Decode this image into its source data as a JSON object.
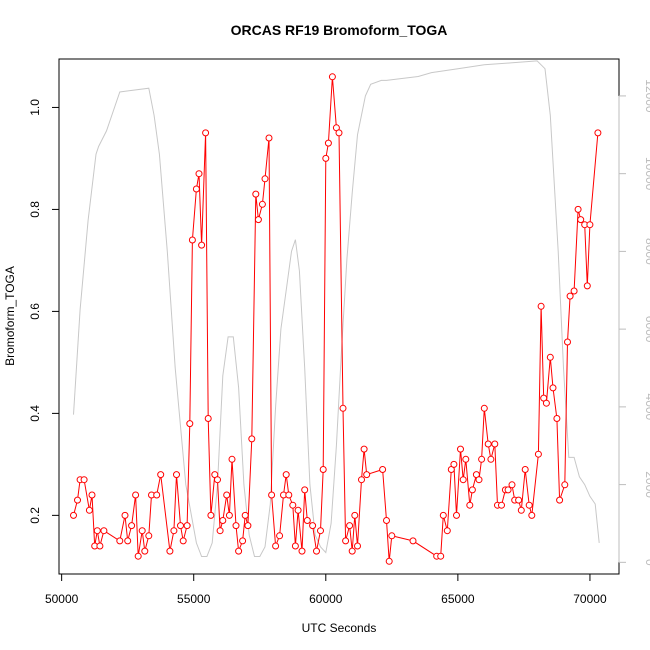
{
  "chart_data": {
    "type": "line",
    "title": "ORCAS RF19 Bromoform_TOGA",
    "xlabel": "UTC Seconds",
    "ylabel": "Bromoform_TOGA",
    "xlim": [
      49900,
      71100
    ],
    "ylim": [
      0.085,
      1.095
    ],
    "y2lim": [
      -300,
      12950
    ],
    "x_ticks": [
      50000,
      55000,
      60000,
      65000,
      70000
    ],
    "y_ticks": [
      0.2,
      0.4,
      0.6,
      0.8,
      1.0
    ],
    "y2_ticks": [
      0,
      2000,
      4000,
      6000,
      8000,
      10000,
      12000
    ],
    "grid": false,
    "series": [
      {
        "color": "#ff0000",
        "points": [
          [
            50450,
            0.2
          ],
          [
            50600,
            0.23
          ],
          [
            50700,
            0.27
          ],
          [
            50850,
            0.27
          ],
          [
            51050,
            0.21
          ],
          [
            51150,
            0.24
          ],
          [
            51250,
            0.14
          ],
          [
            51350,
            0.17
          ],
          [
            51450,
            0.14
          ],
          [
            51600,
            0.17
          ],
          [
            52200,
            0.15
          ],
          [
            52400,
            0.2
          ],
          [
            52500,
            0.15
          ],
          [
            52650,
            0.18
          ],
          [
            52800,
            0.24
          ],
          [
            52900,
            0.12
          ],
          [
            53050,
            0.17
          ],
          [
            53150,
            0.13
          ],
          [
            53300,
            0.16
          ],
          [
            53400,
            0.24
          ],
          [
            53600,
            0.24
          ],
          [
            53750,
            0.28
          ],
          [
            54100,
            0.13
          ],
          [
            54250,
            0.17
          ],
          [
            54350,
            0.28
          ],
          [
            54500,
            0.18
          ],
          [
            54600,
            0.15
          ],
          [
            54750,
            0.18
          ],
          [
            54850,
            0.38
          ],
          [
            54950,
            0.74
          ],
          [
            55100,
            0.84
          ],
          [
            55200,
            0.87
          ],
          [
            55300,
            0.73
          ],
          [
            55450,
            0.95
          ],
          [
            55550,
            0.39
          ],
          [
            55650,
            0.2
          ],
          [
            55800,
            0.28
          ],
          [
            55900,
            0.27
          ],
          [
            56000,
            0.17
          ],
          [
            56100,
            0.19
          ],
          [
            56250,
            0.24
          ],
          [
            56350,
            0.2
          ],
          [
            56450,
            0.31
          ],
          [
            56600,
            0.18
          ],
          [
            56700,
            0.13
          ],
          [
            56850,
            0.15
          ],
          [
            56950,
            0.2
          ],
          [
            57050,
            0.18
          ],
          [
            57200,
            0.35
          ],
          [
            57350,
            0.83
          ],
          [
            57450,
            0.78
          ],
          [
            57600,
            0.81
          ],
          [
            57700,
            0.86
          ],
          [
            57850,
            0.94
          ],
          [
            57950,
            0.24
          ],
          [
            58100,
            0.14
          ],
          [
            58250,
            0.16
          ],
          [
            58400,
            0.24
          ],
          [
            58500,
            0.28
          ],
          [
            58600,
            0.24
          ],
          [
            58750,
            0.22
          ],
          [
            58850,
            0.14
          ],
          [
            58950,
            0.21
          ],
          [
            59100,
            0.13
          ],
          [
            59200,
            0.25
          ],
          [
            59300,
            0.19
          ],
          [
            59500,
            0.18
          ],
          [
            59650,
            0.13
          ],
          [
            59800,
            0.17
          ],
          [
            59900,
            0.29
          ],
          [
            60000,
            0.9
          ],
          [
            60100,
            0.93
          ],
          [
            60250,
            1.06
          ],
          [
            60400,
            0.96
          ],
          [
            60500,
            0.95
          ],
          [
            60650,
            0.41
          ],
          [
            60750,
            0.15
          ],
          [
            60900,
            0.18
          ],
          [
            61000,
            0.13
          ],
          [
            61100,
            0.2
          ],
          [
            61200,
            0.14
          ],
          [
            61350,
            0.27
          ],
          [
            61450,
            0.33
          ],
          [
            61550,
            0.28
          ],
          [
            62150,
            0.29
          ],
          [
            62300,
            0.19
          ],
          [
            62400,
            0.11
          ],
          [
            62500,
            0.16
          ],
          [
            63300,
            0.15
          ],
          [
            64200,
            0.12
          ],
          [
            64350,
            0.12
          ],
          [
            64450,
            0.2
          ],
          [
            64600,
            0.17
          ],
          [
            64750,
            0.29
          ],
          [
            64850,
            0.3
          ],
          [
            64950,
            0.2
          ],
          [
            65100,
            0.33
          ],
          [
            65200,
            0.27
          ],
          [
            65300,
            0.31
          ],
          [
            65450,
            0.22
          ],
          [
            65550,
            0.25
          ],
          [
            65700,
            0.28
          ],
          [
            65800,
            0.27
          ],
          [
            65900,
            0.31
          ],
          [
            66000,
            0.41
          ],
          [
            66150,
            0.34
          ],
          [
            66250,
            0.31
          ],
          [
            66400,
            0.34
          ],
          [
            66500,
            0.22
          ],
          [
            66650,
            0.22
          ],
          [
            66800,
            0.25
          ],
          [
            66900,
            0.25
          ],
          [
            67050,
            0.26
          ],
          [
            67150,
            0.23
          ],
          [
            67300,
            0.23
          ],
          [
            67400,
            0.21
          ],
          [
            67550,
            0.29
          ],
          [
            67700,
            0.22
          ],
          [
            67800,
            0.2
          ],
          [
            68050,
            0.32
          ],
          [
            68150,
            0.61
          ],
          [
            68250,
            0.43
          ],
          [
            68350,
            0.42
          ],
          [
            68500,
            0.51
          ],
          [
            68600,
            0.45
          ],
          [
            68750,
            0.39
          ],
          [
            68850,
            0.23
          ],
          [
            69050,
            0.26
          ],
          [
            69150,
            0.54
          ],
          [
            69250,
            0.63
          ],
          [
            69400,
            0.64
          ],
          [
            69550,
            0.8
          ],
          [
            69650,
            0.78
          ],
          [
            69800,
            0.77
          ],
          [
            69900,
            0.65
          ],
          [
            70000,
            0.77
          ],
          [
            70300,
            0.95
          ]
        ]
      },
      {
        "color": "#c8c8c8",
        "axis": "right",
        "points": [
          [
            50450,
            3800
          ],
          [
            50700,
            6500
          ],
          [
            51000,
            8800
          ],
          [
            51300,
            10500
          ],
          [
            51400,
            10700
          ],
          [
            51700,
            11100
          ],
          [
            51900,
            11500
          ],
          [
            52200,
            12100
          ],
          [
            53300,
            12200
          ],
          [
            53500,
            11500
          ],
          [
            53700,
            10500
          ],
          [
            54000,
            8000
          ],
          [
            54300,
            5000
          ],
          [
            54700,
            2000
          ],
          [
            55100,
            500
          ],
          [
            55300,
            150
          ],
          [
            55500,
            150
          ],
          [
            55700,
            500
          ],
          [
            55900,
            2000
          ],
          [
            56100,
            4800
          ],
          [
            56300,
            5800
          ],
          [
            56500,
            5800
          ],
          [
            56700,
            4500
          ],
          [
            56900,
            2000
          ],
          [
            57100,
            700
          ],
          [
            57300,
            150
          ],
          [
            57500,
            150
          ],
          [
            57700,
            400
          ],
          [
            57900,
            1500
          ],
          [
            58100,
            4000
          ],
          [
            58300,
            6000
          ],
          [
            58500,
            7000
          ],
          [
            58700,
            8000
          ],
          [
            58850,
            8300
          ],
          [
            59000,
            7500
          ],
          [
            59200,
            5000
          ],
          [
            59400,
            2000
          ],
          [
            59600,
            700
          ],
          [
            59800,
            400
          ],
          [
            60000,
            250
          ],
          [
            60200,
            1000
          ],
          [
            60400,
            3000
          ],
          [
            60600,
            5500
          ],
          [
            60800,
            7800
          ],
          [
            61000,
            9500
          ],
          [
            61200,
            11000
          ],
          [
            61500,
            12000
          ],
          [
            61700,
            12300
          ],
          [
            62100,
            12400
          ],
          [
            62300,
            12400
          ],
          [
            63500,
            12500
          ],
          [
            64000,
            12600
          ],
          [
            65000,
            12700
          ],
          [
            66000,
            12800
          ],
          [
            67000,
            12850
          ],
          [
            68000,
            12900
          ],
          [
            68300,
            12700
          ],
          [
            68500,
            11500
          ],
          [
            68800,
            8000
          ],
          [
            69000,
            5000
          ],
          [
            69200,
            2700
          ],
          [
            69400,
            2700
          ],
          [
            69600,
            2200
          ],
          [
            69800,
            2000
          ],
          [
            70000,
            1700
          ],
          [
            70200,
            1500
          ],
          [
            70350,
            500
          ]
        ]
      }
    ]
  }
}
